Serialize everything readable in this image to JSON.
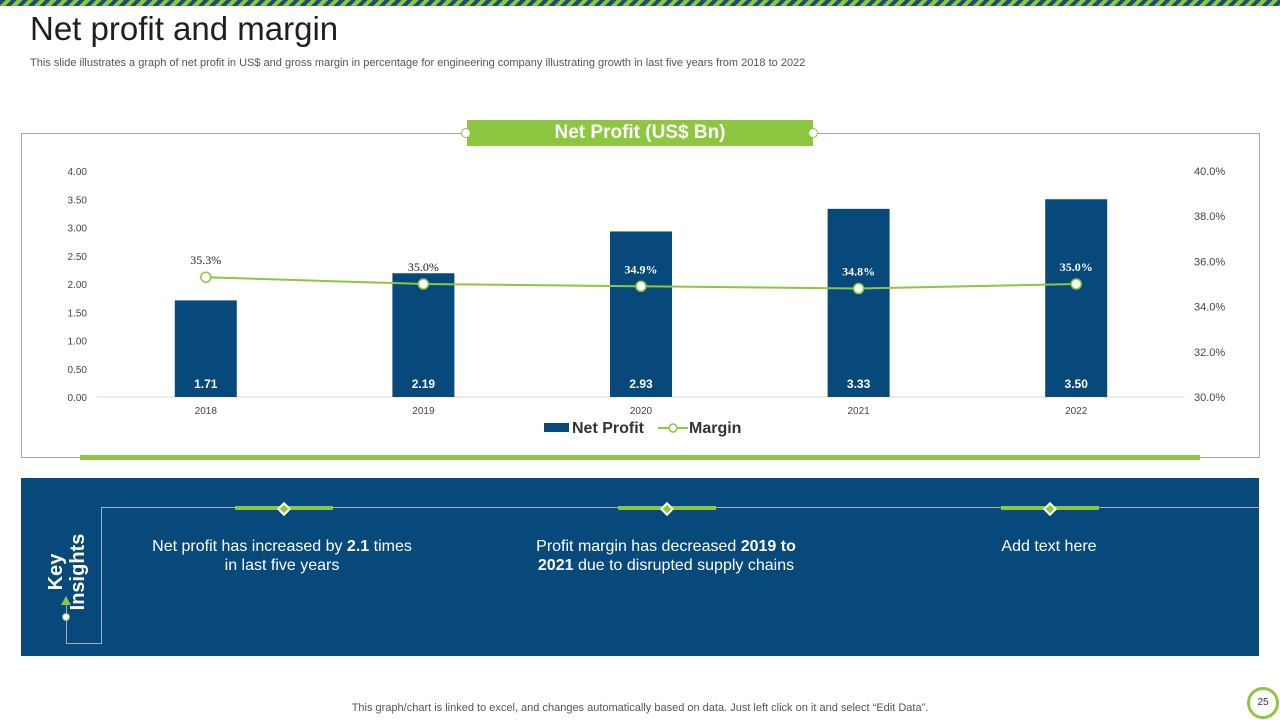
{
  "slide": {
    "title": "Net profit and margin",
    "subtitle": "This slide illustrates a graph of net profit in US$ and gross margin in percentage for engineering company illustrating growth in last five years from 2018 to 2022",
    "footer": "This graph/chart is linked to excel,  and changes automatically based on data. Just left click on it and select “Edit Data”.",
    "page_number": "25"
  },
  "chart_data": {
    "type": "bar",
    "title": "Net Profit (US$ Bn)",
    "categories": [
      "2018",
      "2019",
      "2020",
      "2021",
      "2022"
    ],
    "series": [
      {
        "name": "Net Profit",
        "type": "bar",
        "axis": "left",
        "values": [
          1.71,
          2.19,
          2.93,
          3.33,
          3.5
        ],
        "labels": [
          "1.71",
          "2.19",
          "2.93",
          "3.33",
          "3.50"
        ]
      },
      {
        "name": "Margin",
        "type": "line",
        "axis": "right",
        "values": [
          35.3,
          35.0,
          34.9,
          34.8,
          35.0
        ],
        "labels": [
          "35.3%",
          "35.0%",
          "34.9%",
          "34.8%",
          "35.0%"
        ]
      }
    ],
    "y_left": {
      "min": 0,
      "max": 4,
      "ticks": [
        "0.00",
        "0.50",
        "1.00",
        "1.50",
        "2.00",
        "2.50",
        "3.00",
        "3.50",
        "4.00"
      ]
    },
    "y_right": {
      "min": 30,
      "max": 40,
      "ticks": [
        "30.0%",
        "32.0%",
        "34.0%",
        "36.0%",
        "38.0%",
        "40.0%"
      ]
    },
    "legend": [
      "Net Profit",
      "Margin"
    ],
    "legend_position": "bottom",
    "colors": {
      "bar": "#07497a",
      "line": "#8dc63f"
    }
  },
  "insights": {
    "label_line1": "Key",
    "label_line2": "Insights",
    "items": [
      {
        "pre": "Net profit has increased by ",
        "bold": "2.1",
        "post": " times in last five years"
      },
      {
        "pre": "Profit margin has decreased ",
        "bold": "2019 to 2021",
        "post": " due to disrupted supply chains"
      },
      {
        "pre": "Add text here",
        "bold": "",
        "post": ""
      }
    ]
  }
}
